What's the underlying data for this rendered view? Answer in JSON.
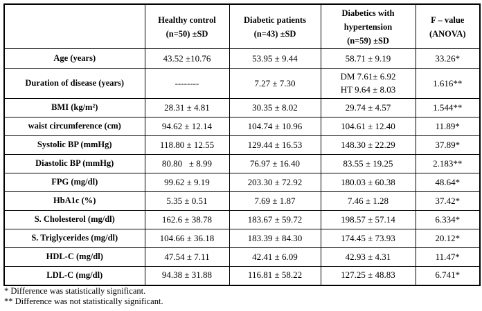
{
  "table": {
    "column_headers": [
      "",
      "Healthy control\n(n=50) ±SD",
      "Diabetic patients\n(n=43) ±SD",
      "Diabetics with hypertension\n(n=59) ±SD",
      "F – value\n(ANOVA)"
    ],
    "rows": [
      {
        "label": "Age (years)",
        "values": [
          "43.52 ±10.76",
          "53.95 ± 9.44",
          "58.71 ± 9.19",
          "33.26*"
        ]
      },
      {
        "label": "Duration of disease (years)",
        "values": [
          "--------",
          "7.27 ± 7.30",
          "DM 7.61± 6.92\nHT 9.64 ± 8.03",
          "1.616**"
        ]
      },
      {
        "label": "BMI (kg/m²)",
        "values": [
          "28.31 ± 4.81",
          "30.35 ± 8.02",
          "29.74 ± 4.57",
          "1.544**"
        ]
      },
      {
        "label": "waist circumference (cm)",
        "values": [
          "94.62 ± 12.14",
          "104.74 ± 10.96",
          "104.61 ± 12.40",
          "11.89*"
        ]
      },
      {
        "label": "Systolic BP (mmHg)",
        "values": [
          "118.80 ± 12.55",
          "129.44 ± 16.53",
          "148.30 ± 22.29",
          "37.89*"
        ]
      },
      {
        "label": "Diastolic BP (mmHg)",
        "values": [
          "80.80   ± 8.99",
          "76.97 ± 16.40",
          "83.55 ± 19.25",
          "2.183**"
        ]
      },
      {
        "label": "FPG (mg/dl)",
        "values": [
          "99.62 ± 9.19",
          "203.30 ± 72.92",
          "180.03 ± 60.38",
          "48.64*"
        ]
      },
      {
        "label": "HbA1c (%)",
        "values": [
          "5.35 ± 0.51",
          "7.69 ± 1.87",
          "7.46 ± 1.28",
          "37.42*"
        ]
      },
      {
        "label": "S. Cholesterol (mg/dl)",
        "values": [
          "162.6 ± 38.78",
          "183.67 ± 59.72",
          "198.57 ± 57.14",
          "6.334*"
        ]
      },
      {
        "label": "S. Triglycerides (mg/dl)",
        "values": [
          "104.66 ± 36.18",
          "183.39 ± 84.30",
          "174.45 ± 73.93",
          "20.12*"
        ]
      },
      {
        "label": "HDL-C (mg/dl)",
        "values": [
          "47.54 ± 7.11",
          "42.41 ± 6.09",
          "42.93 ± 4.31",
          "11.47*"
        ]
      },
      {
        "label": "LDL-C (mg/dl)",
        "values": [
          "94.38 ± 31.88",
          "116.81 ± 58.22",
          "127.25 ± 48.83",
          "6.741*"
        ]
      }
    ]
  },
  "footnotes": [
    "* Difference was statistically significant.",
    "** Difference was not statistically significant."
  ]
}
